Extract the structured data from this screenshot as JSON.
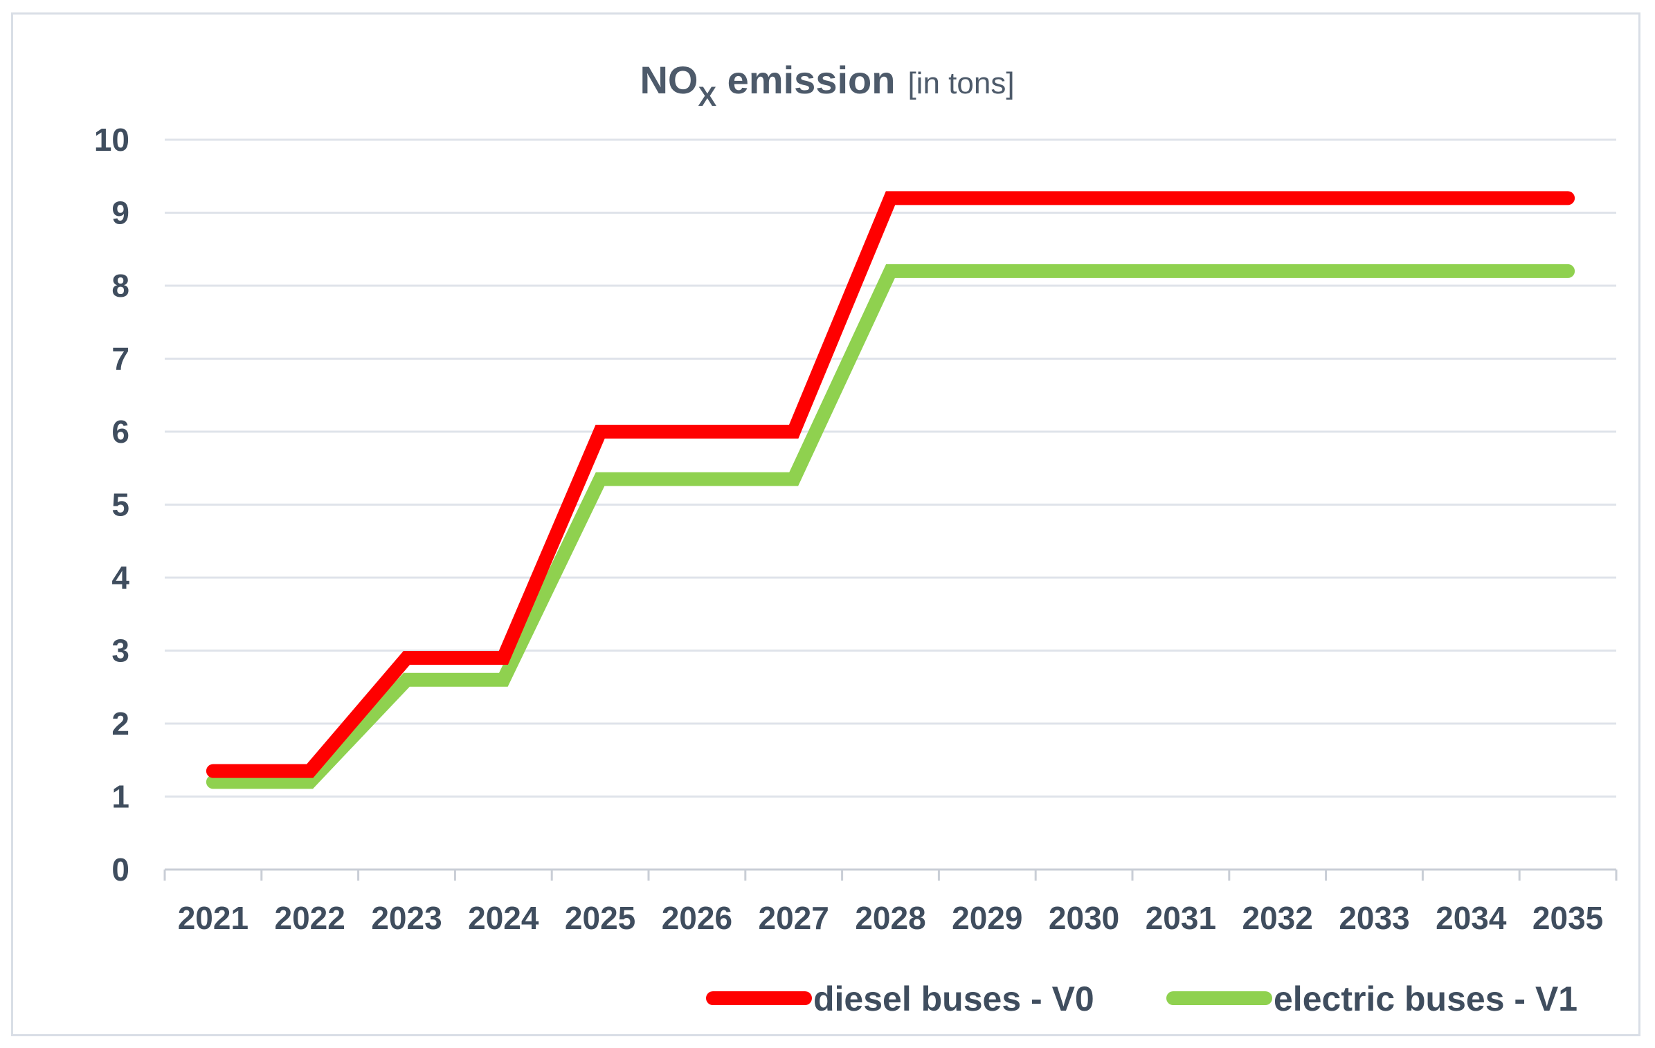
{
  "chart_data": {
    "type": "line",
    "title": {
      "main_prefix": "NO",
      "main_subscript": "X",
      "main_suffix": " emission",
      "unit": "[in tons]"
    },
    "xlabel": "",
    "ylabel": "",
    "categories": [
      "2021",
      "2022",
      "2023",
      "2024",
      "2025",
      "2026",
      "2027",
      "2028",
      "2029",
      "2030",
      "2031",
      "2032",
      "2033",
      "2034",
      "2035"
    ],
    "ylim": [
      0,
      10
    ],
    "yticks": [
      "0",
      "1",
      "2",
      "3",
      "4",
      "5",
      "6",
      "7",
      "8",
      "9",
      "10"
    ],
    "grid": true,
    "legend_position": "bottom-right",
    "series": [
      {
        "name": "diesel buses - V0",
        "color": "#ff0000",
        "values": [
          1.35,
          1.35,
          2.9,
          2.9,
          6.0,
          6.0,
          6.0,
          9.2,
          9.2,
          9.2,
          9.2,
          9.2,
          9.2,
          9.2,
          9.2
        ]
      },
      {
        "name": "electric buses - V1",
        "color": "#8fd14f",
        "values": [
          1.2,
          1.2,
          2.6,
          2.6,
          5.35,
          5.35,
          5.35,
          8.2,
          8.2,
          8.2,
          8.2,
          8.2,
          8.2,
          8.2,
          8.2
        ]
      }
    ]
  },
  "colors": {
    "gridline": "#dfe3ea",
    "axis": "#c9ced6",
    "text": "#3f4d5e"
  }
}
